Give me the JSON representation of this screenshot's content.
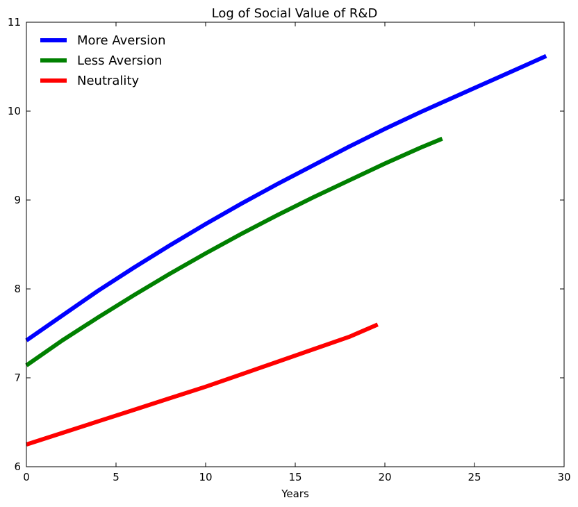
{
  "chart_data": {
    "type": "line",
    "title": "Log of Social Value of R&D",
    "xlabel": "Years",
    "ylabel": "",
    "xlim": [
      0,
      30
    ],
    "ylim": [
      6,
      11
    ],
    "xticks": [
      0,
      5,
      10,
      15,
      20,
      25,
      30
    ],
    "yticks": [
      6,
      7,
      8,
      9,
      10,
      11
    ],
    "grid": false,
    "legend_position": "top-left",
    "series": [
      {
        "name": "More Aversion",
        "color": "#0000ff",
        "x": [
          0,
          2,
          4,
          6,
          8,
          10,
          12,
          14,
          16,
          18,
          20,
          22,
          24,
          26,
          28,
          29
        ],
        "y": [
          7.42,
          7.7,
          7.98,
          8.24,
          8.49,
          8.73,
          8.96,
          9.18,
          9.39,
          9.6,
          9.8,
          9.99,
          10.17,
          10.35,
          10.53,
          10.62
        ]
      },
      {
        "name": "Less Aversion",
        "color": "#008000",
        "x": [
          0,
          2,
          4,
          6,
          8,
          10,
          12,
          14,
          16,
          18,
          20,
          22,
          23.2
        ],
        "y": [
          7.14,
          7.42,
          7.68,
          7.93,
          8.17,
          8.4,
          8.62,
          8.83,
          9.03,
          9.22,
          9.41,
          9.59,
          9.69
        ]
      },
      {
        "name": "Neutrality",
        "color": "#ff0000",
        "x": [
          0,
          2,
          4,
          6,
          8,
          10,
          12,
          14,
          16,
          18,
          19.6
        ],
        "y": [
          6.25,
          6.38,
          6.51,
          6.64,
          6.77,
          6.9,
          7.04,
          7.18,
          7.32,
          7.46,
          7.6
        ]
      }
    ]
  }
}
